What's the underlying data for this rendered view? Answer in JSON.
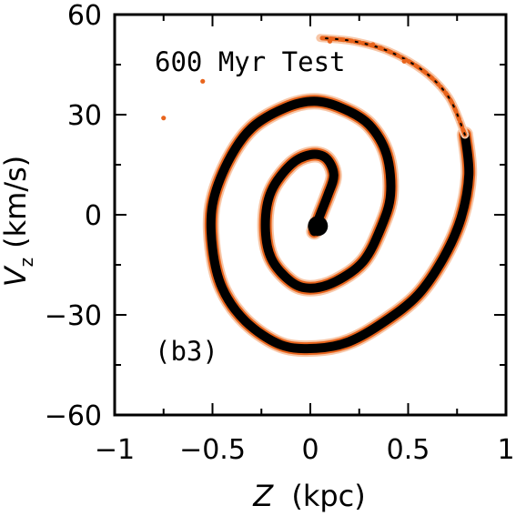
{
  "chart_data": {
    "type": "scatter",
    "title": "",
    "annotation": "600 Myr Test",
    "panel_label": "(b3)",
    "xlabel": {
      "var": "Z",
      "unit": "(kpc)"
    },
    "ylabel": {
      "var": "V",
      "sub": "z",
      "unit": "(km/s)"
    },
    "xlim": [
      -1,
      1
    ],
    "ylim": [
      -60,
      60
    ],
    "x_ticks": [
      -1,
      -0.5,
      0,
      0.5,
      1
    ],
    "x_tick_labels": [
      "−1",
      "−0.5",
      "0",
      "0.5",
      "1"
    ],
    "y_ticks": [
      -60,
      -30,
      0,
      30,
      60
    ],
    "y_tick_labels": [
      "−60",
      "−30",
      "0",
      "30",
      "60"
    ],
    "grid": false,
    "colors": {
      "core": "#000000",
      "halo": "#e8641c",
      "faint": "#f7c7a8"
    },
    "spiral": {
      "description_of_shape": "phase-space spiral in the Z–Vz plane",
      "points": [
        [
          0.02,
          -5
        ],
        [
          0.05,
          0
        ],
        [
          0.09,
          6
        ],
        [
          0.12,
          12
        ],
        [
          0.08,
          17
        ],
        [
          0.0,
          18
        ],
        [
          -0.1,
          15
        ],
        [
          -0.2,
          7
        ],
        [
          -0.23,
          -3
        ],
        [
          -0.2,
          -13
        ],
        [
          -0.1,
          -20
        ],
        [
          0.0,
          -22
        ],
        [
          0.13,
          -20
        ],
        [
          0.27,
          -14
        ],
        [
          0.36,
          -4
        ],
        [
          0.41,
          6
        ],
        [
          0.39,
          18
        ],
        [
          0.3,
          27
        ],
        [
          0.16,
          32
        ],
        [
          0.02,
          34
        ],
        [
          -0.13,
          32
        ],
        [
          -0.3,
          26
        ],
        [
          -0.42,
          16
        ],
        [
          -0.5,
          3
        ],
        [
          -0.5,
          -10
        ],
        [
          -0.45,
          -22
        ],
        [
          -0.33,
          -32
        ],
        [
          -0.15,
          -39
        ],
        [
          0.03,
          -40
        ],
        [
          0.2,
          -38
        ],
        [
          0.38,
          -32
        ],
        [
          0.55,
          -24
        ],
        [
          0.68,
          -13
        ],
        [
          0.77,
          -1
        ],
        [
          0.81,
          12
        ],
        [
          0.79,
          24
        ],
        [
          0.71,
          35
        ],
        [
          0.58,
          43
        ],
        [
          0.4,
          49
        ],
        [
          0.22,
          52
        ],
        [
          0.05,
          53
        ]
      ],
      "outer_scatter": [
        [
          -0.75,
          29
        ],
        [
          -0.55,
          40
        ],
        [
          0.32,
          51
        ],
        [
          0.36,
          50
        ],
        [
          0.48,
          46
        ],
        [
          0.1,
          52
        ]
      ]
    }
  }
}
